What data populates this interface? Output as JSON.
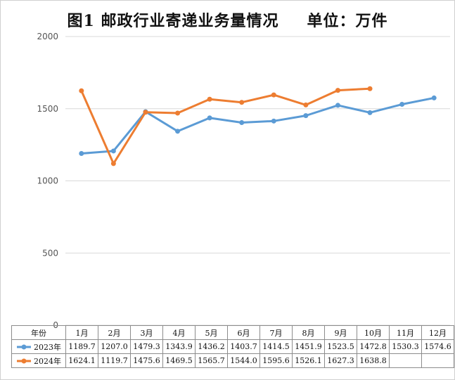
{
  "title": {
    "main": "图1 邮政行业寄递业务量情况",
    "unit": "单位：万件"
  },
  "colors": {
    "series_2023": "#5b9bd5",
    "series_2024": "#ed7d31",
    "grid": "#d9d9d9"
  },
  "chart_data": {
    "type": "line",
    "title": "图1 邮政行业寄递业务量情况",
    "ylabel": "",
    "xlabel": "",
    "ylim": [
      0,
      2000
    ],
    "yticks": [
      0,
      500,
      1000,
      1500,
      2000
    ],
    "grid": true,
    "legend": "data-table",
    "table_header": "年份",
    "categories": [
      "1月",
      "2月",
      "3月",
      "4月",
      "5月",
      "6月",
      "7月",
      "8月",
      "9月",
      "10月",
      "11月",
      "12月"
    ],
    "series": [
      {
        "name": "2023年",
        "color": "#5b9bd5",
        "values": [
          1189.7,
          1207.0,
          1479.3,
          1343.9,
          1436.2,
          1403.7,
          1414.5,
          1451.9,
          1523.5,
          1472.8,
          1530.3,
          1574.6
        ],
        "labels": [
          "1189.7",
          "1207.0",
          "1479.3",
          "1343.9",
          "1436.2",
          "1403.7",
          "1414.5",
          "1451.9",
          "1523.5",
          "1472.8",
          "1530.3",
          "1574.6"
        ]
      },
      {
        "name": "2024年",
        "color": "#ed7d31",
        "values": [
          1624.1,
          1119.7,
          1475.6,
          1469.5,
          1565.7,
          1544.0,
          1595.6,
          1526.1,
          1627.3,
          1638.8,
          null,
          null
        ],
        "labels": [
          "1624.1",
          "1119.7",
          "1475.6",
          "1469.5",
          "1565.7",
          "1544.0",
          "1595.6",
          "1526.1",
          "1627.3",
          "1638.8",
          "",
          ""
        ]
      }
    ]
  }
}
